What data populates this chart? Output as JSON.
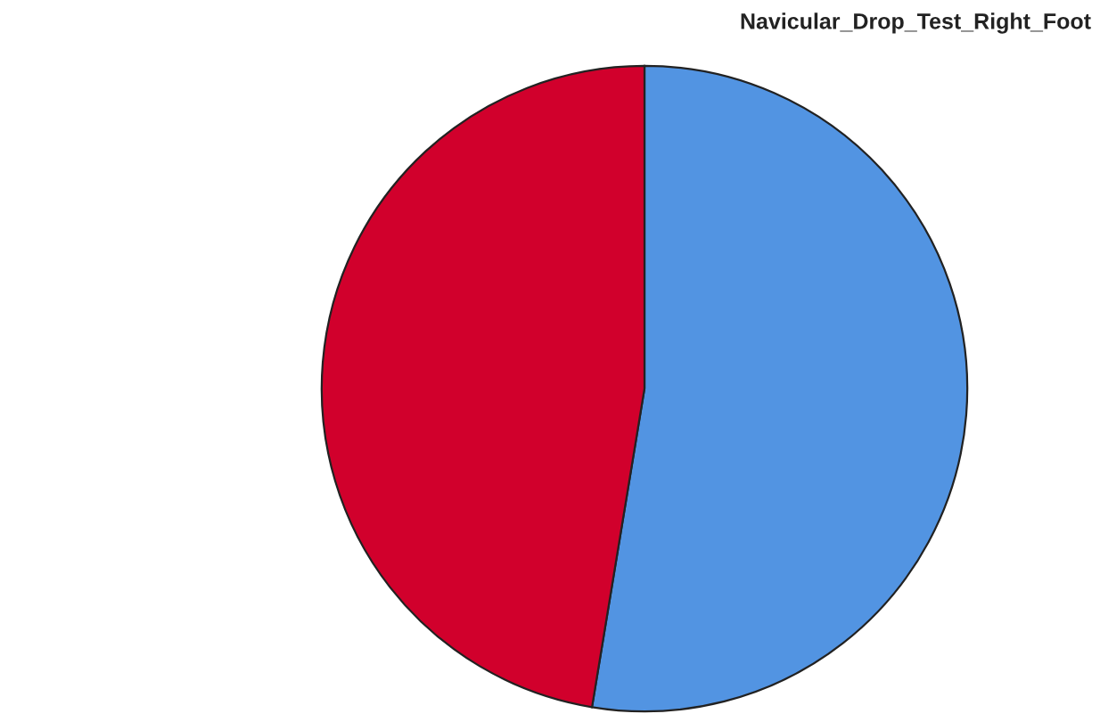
{
  "chart_data": {
    "type": "pie",
    "title": "Navicular_Drop_Test_Right_Foot",
    "categories": [
      null,
      null
    ],
    "values": [
      52.6,
      47.4
    ],
    "colors": [
      "#5294e2",
      "#d1002c"
    ]
  }
}
